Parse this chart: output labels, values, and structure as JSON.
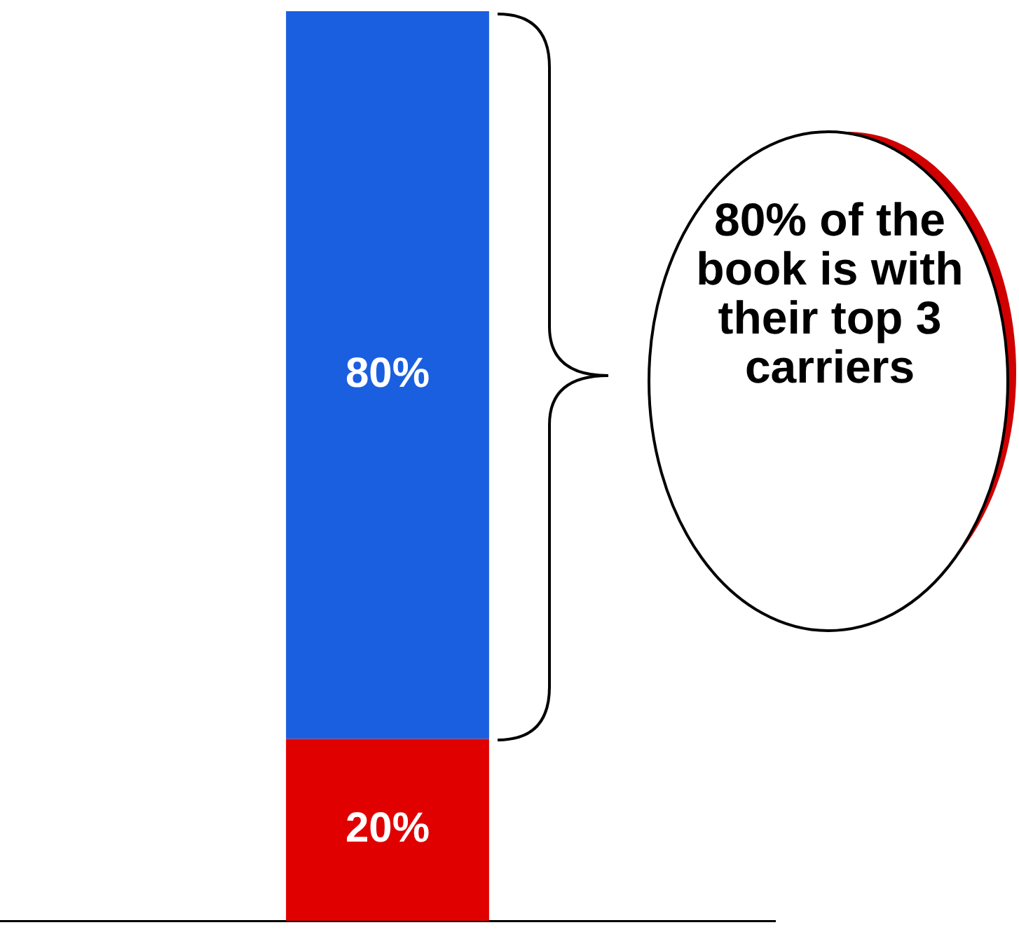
{
  "chart_data": {
    "type": "bar",
    "stacked": true,
    "categories": [
      null
    ],
    "series": [
      {
        "color": "#e00000",
        "values": [
          20
        ],
        "value_labels": [
          "20%"
        ]
      },
      {
        "color": "#1a5fe0",
        "values": [
          80
        ],
        "value_labels": [
          "80%"
        ]
      }
    ],
    "legend": false,
    "annotations": [
      "80% of the book is with their top 3 carriers"
    ]
  }
}
